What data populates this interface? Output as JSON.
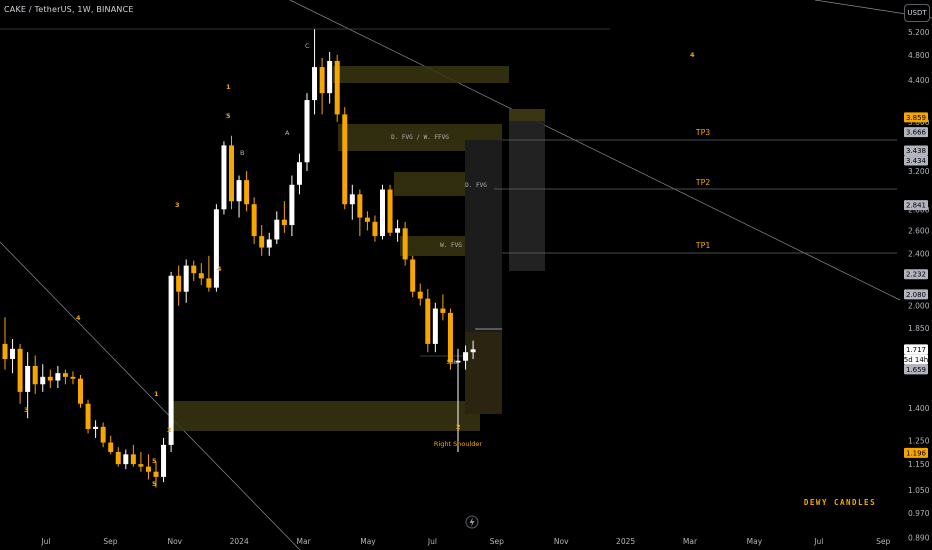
{
  "header": {
    "title": "CAKE / TetherUS, 1W, BINANCE",
    "currency": "USDT"
  },
  "price_axis": {
    "ticks": [
      "5.200",
      "4.800",
      "4.400",
      "3.800",
      "3.200",
      "2.800",
      "2.600",
      "2.400",
      "2.000",
      "1.850",
      "1.400",
      "1.250",
      "1.150",
      "1.050",
      "0.970",
      "0.890",
      "0.820"
    ],
    "badges": [
      {
        "label": "3.859",
        "bg": "#f7a600",
        "fg": "#000000"
      },
      {
        "label": "3.666",
        "bg": "#b2b5be",
        "fg": "#000000"
      },
      {
        "label": "3.438",
        "bg": "#b2b5be",
        "fg": "#000000"
      },
      {
        "label": "3.434",
        "bg": "#b2b5be",
        "fg": "#000000"
      },
      {
        "label": "2.841",
        "bg": "#b2b5be",
        "fg": "#000000"
      },
      {
        "label": "2.232",
        "bg": "#b2b5be",
        "fg": "#000000"
      },
      {
        "label": "2.080",
        "bg": "#b2b5be",
        "fg": "#000000"
      },
      {
        "label": "1.717",
        "bg": "#ffffff",
        "fg": "#000000"
      },
      {
        "label": "5d 14h",
        "bg": "#ffffff",
        "fg": "#000000"
      },
      {
        "label": "1.659",
        "bg": "#b2b5be",
        "fg": "#000000"
      },
      {
        "label": "1.196",
        "bg": "#f7a600",
        "fg": "#000000"
      }
    ]
  },
  "time_axis": {
    "ticks": [
      "Jul",
      "Sep",
      "Nov",
      "2024",
      "Mar",
      "May",
      "Jul",
      "Sep",
      "Nov",
      "2025",
      "Mar",
      "May",
      "Jul",
      "Sep"
    ]
  },
  "annotations": {
    "zones": [
      "D. FVG  /  W. FFVG",
      "D. FVG",
      "W. FVG",
      "SSL"
    ],
    "targets": [
      "TP3",
      "TP2",
      "TP1"
    ],
    "wave_labels": [
      "1",
      "2",
      "3",
      "4",
      "5",
      "A",
      "B",
      "C"
    ],
    "right_shoulder": "Right Shoulder",
    "watermark": "DEWY CANDLES"
  },
  "colors": {
    "background": "#000000",
    "bull": "#ffffff",
    "bear": "#f7a600",
    "label_orange": "#f7a600",
    "zone_fill": "#3a3512",
    "grid_text": "#b2b5be"
  },
  "chart_data": {
    "type": "candlestick",
    "title": "CAKE / TetherUS, 1W, BINANCE",
    "xlabel": "",
    "ylabel": "",
    "y_scale": "log",
    "ylim": [
      0.8,
      5.4
    ],
    "grid": false,
    "interval": "1W",
    "x_ticks": [
      "Jul",
      "Sep",
      "Nov",
      "2024",
      "Mar",
      "May",
      "Jul",
      "Sep",
      "Nov",
      "2025",
      "Mar",
      "May",
      "Jul",
      "Sep"
    ],
    "candles": [
      {
        "o": 1.75,
        "h": 1.92,
        "l": 1.6,
        "c": 1.66
      },
      {
        "o": 1.66,
        "h": 1.78,
        "l": 1.58,
        "c": 1.72
      },
      {
        "o": 1.72,
        "h": 1.75,
        "l": 1.42,
        "c": 1.48
      },
      {
        "o": 1.48,
        "h": 1.7,
        "l": 1.35,
        "c": 1.62
      },
      {
        "o": 1.62,
        "h": 1.68,
        "l": 1.47,
        "c": 1.52
      },
      {
        "o": 1.52,
        "h": 1.63,
        "l": 1.48,
        "c": 1.56
      },
      {
        "o": 1.56,
        "h": 1.6,
        "l": 1.5,
        "c": 1.54
      },
      {
        "o": 1.54,
        "h": 1.62,
        "l": 1.5,
        "c": 1.58
      },
      {
        "o": 1.58,
        "h": 1.6,
        "l": 1.52,
        "c": 1.56
      },
      {
        "o": 1.56,
        "h": 1.59,
        "l": 1.52,
        "c": 1.55
      },
      {
        "o": 1.55,
        "h": 1.57,
        "l": 1.4,
        "c": 1.42
      },
      {
        "o": 1.42,
        "h": 1.44,
        "l": 1.28,
        "c": 1.3
      },
      {
        "o": 1.3,
        "h": 1.34,
        "l": 1.26,
        "c": 1.31
      },
      {
        "o": 1.31,
        "h": 1.33,
        "l": 1.22,
        "c": 1.24
      },
      {
        "o": 1.24,
        "h": 1.27,
        "l": 1.19,
        "c": 1.2
      },
      {
        "o": 1.2,
        "h": 1.22,
        "l": 1.14,
        "c": 1.15
      },
      {
        "o": 1.15,
        "h": 1.21,
        "l": 1.13,
        "c": 1.19
      },
      {
        "o": 1.19,
        "h": 1.23,
        "l": 1.14,
        "c": 1.15
      },
      {
        "o": 1.15,
        "h": 1.2,
        "l": 1.12,
        "c": 1.14
      },
      {
        "o": 1.14,
        "h": 1.19,
        "l": 1.09,
        "c": 1.12
      },
      {
        "o": 1.12,
        "h": 1.16,
        "l": 1.06,
        "c": 1.1
      },
      {
        "o": 1.1,
        "h": 1.26,
        "l": 1.08,
        "c": 1.23
      },
      {
        "o": 1.23,
        "h": 2.25,
        "l": 1.2,
        "c": 2.22
      },
      {
        "o": 2.22,
        "h": 2.3,
        "l": 2.0,
        "c": 2.1
      },
      {
        "o": 2.1,
        "h": 2.35,
        "l": 2.02,
        "c": 2.3
      },
      {
        "o": 2.3,
        "h": 2.34,
        "l": 2.18,
        "c": 2.24
      },
      {
        "o": 2.24,
        "h": 2.32,
        "l": 2.15,
        "c": 2.2
      },
      {
        "o": 2.2,
        "h": 2.38,
        "l": 2.1,
        "c": 2.13
      },
      {
        "o": 2.13,
        "h": 2.85,
        "l": 2.1,
        "c": 2.8
      },
      {
        "o": 2.8,
        "h": 3.55,
        "l": 2.75,
        "c": 3.5
      },
      {
        "o": 3.5,
        "h": 3.62,
        "l": 2.8,
        "c": 2.88
      },
      {
        "o": 2.88,
        "h": 3.15,
        "l": 2.72,
        "c": 3.1
      },
      {
        "o": 3.1,
        "h": 3.2,
        "l": 2.78,
        "c": 2.85
      },
      {
        "o": 2.85,
        "h": 2.92,
        "l": 2.48,
        "c": 2.55
      },
      {
        "o": 2.55,
        "h": 2.65,
        "l": 2.38,
        "c": 2.45
      },
      {
        "o": 2.45,
        "h": 2.58,
        "l": 2.38,
        "c": 2.52
      },
      {
        "o": 2.52,
        "h": 2.78,
        "l": 2.48,
        "c": 2.7
      },
      {
        "o": 2.7,
        "h": 2.88,
        "l": 2.58,
        "c": 2.65
      },
      {
        "o": 2.65,
        "h": 3.15,
        "l": 2.55,
        "c": 3.05
      },
      {
        "o": 3.05,
        "h": 3.4,
        "l": 2.95,
        "c": 3.3
      },
      {
        "o": 3.3,
        "h": 4.2,
        "l": 3.2,
        "c": 4.1
      },
      {
        "o": 4.1,
        "h": 5.25,
        "l": 3.9,
        "c": 4.6
      },
      {
        "o": 4.6,
        "h": 4.75,
        "l": 3.9,
        "c": 4.2
      },
      {
        "o": 4.2,
        "h": 4.85,
        "l": 4.05,
        "c": 4.7
      },
      {
        "o": 4.7,
        "h": 4.8,
        "l": 3.8,
        "c": 3.9
      },
      {
        "o": 3.9,
        "h": 4.0,
        "l": 2.8,
        "c": 2.85
      },
      {
        "o": 2.85,
        "h": 3.05,
        "l": 2.7,
        "c": 2.95
      },
      {
        "o": 2.95,
        "h": 3.0,
        "l": 2.55,
        "c": 2.72
      },
      {
        "o": 2.72,
        "h": 2.78,
        "l": 2.6,
        "c": 2.68
      },
      {
        "o": 2.68,
        "h": 2.74,
        "l": 2.5,
        "c": 2.55
      },
      {
        "o": 2.55,
        "h": 3.05,
        "l": 2.52,
        "c": 3.0
      },
      {
        "o": 3.0,
        "h": 3.05,
        "l": 2.55,
        "c": 2.58
      },
      {
        "o": 2.58,
        "h": 2.7,
        "l": 2.5,
        "c": 2.62
      },
      {
        "o": 2.62,
        "h": 2.68,
        "l": 2.3,
        "c": 2.35
      },
      {
        "o": 2.35,
        "h": 2.38,
        "l": 2.06,
        "c": 2.1
      },
      {
        "o": 2.1,
        "h": 2.16,
        "l": 2.0,
        "c": 2.05
      },
      {
        "o": 2.05,
        "h": 2.12,
        "l": 1.7,
        "c": 1.75
      },
      {
        "o": 1.75,
        "h": 2.02,
        "l": 1.7,
        "c": 1.98
      },
      {
        "o": 1.98,
        "h": 2.08,
        "l": 1.9,
        "c": 1.95
      },
      {
        "o": 1.95,
        "h": 1.98,
        "l": 1.6,
        "c": 1.64
      },
      {
        "o": 1.64,
        "h": 1.72,
        "l": 1.2,
        "c": 1.65
      },
      {
        "o": 1.65,
        "h": 1.74,
        "l": 1.6,
        "c": 1.7
      },
      {
        "o": 1.7,
        "h": 1.77,
        "l": 1.66,
        "c": 1.717
      }
    ]
  }
}
